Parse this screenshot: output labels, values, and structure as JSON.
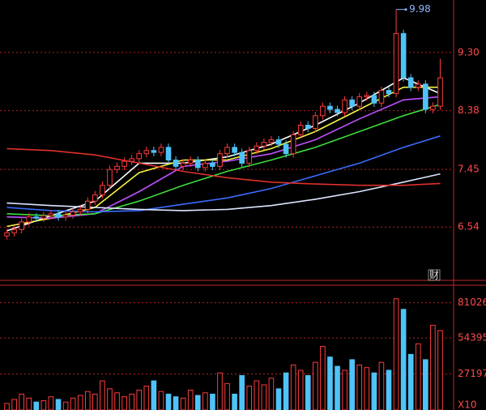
{
  "chart_data": [
    {
      "type": "candlestick",
      "open": [
        6.4,
        6.45,
        6.5,
        6.62,
        6.7,
        6.68,
        6.72,
        6.75,
        6.7,
        6.73,
        6.78,
        6.82,
        6.95,
        7.05,
        7.2,
        7.45,
        7.5,
        7.58,
        7.62,
        7.7,
        7.75,
        7.72,
        7.8,
        7.6,
        7.5,
        7.55,
        7.6,
        7.48,
        7.55,
        7.5,
        7.7,
        7.8,
        7.72,
        7.55,
        7.75,
        7.82,
        7.88,
        7.92,
        7.85,
        7.7,
        8.0,
        8.15,
        8.1,
        8.3,
        8.45,
        8.4,
        8.35,
        8.55,
        8.45,
        8.6,
        8.62,
        8.5,
        8.7,
        8.65,
        9.6,
        8.9,
        8.75,
        8.8,
        8.4,
        8.45
      ],
      "high": [
        6.51,
        6.56,
        6.68,
        6.76,
        6.76,
        6.78,
        6.81,
        6.81,
        6.79,
        6.84,
        6.88,
        7.01,
        7.11,
        7.26,
        7.51,
        7.56,
        7.64,
        7.68,
        7.76,
        7.81,
        7.81,
        7.86,
        7.86,
        7.66,
        7.61,
        7.66,
        7.66,
        7.61,
        7.61,
        7.76,
        7.86,
        7.86,
        7.78,
        7.81,
        7.88,
        7.94,
        7.98,
        7.98,
        7.91,
        8.06,
        8.21,
        8.21,
        8.36,
        8.51,
        8.51,
        8.46,
        8.61,
        8.61,
        8.66,
        8.68,
        8.68,
        8.76,
        8.76,
        9.98,
        9.66,
        8.96,
        8.86,
        8.86,
        8.51,
        9.2
      ],
      "low": [
        6.34,
        6.39,
        6.44,
        6.56,
        6.62,
        6.62,
        6.66,
        6.64,
        6.64,
        6.67,
        6.72,
        6.76,
        6.89,
        6.99,
        7.14,
        7.39,
        7.44,
        7.52,
        7.56,
        7.64,
        7.66,
        7.66,
        7.54,
        7.44,
        7.44,
        7.49,
        7.42,
        7.42,
        7.44,
        7.44,
        7.64,
        7.66,
        7.49,
        7.49,
        7.69,
        7.76,
        7.82,
        7.79,
        7.64,
        7.64,
        7.94,
        8.04,
        8.04,
        8.24,
        8.34,
        8.29,
        8.29,
        8.39,
        8.39,
        8.54,
        8.44,
        8.44,
        8.59,
        8.59,
        8.84,
        8.69,
        8.69,
        8.34,
        8.34,
        8.39
      ],
      "close": [
        6.45,
        6.5,
        6.62,
        6.7,
        6.68,
        6.72,
        6.75,
        6.7,
        6.73,
        6.78,
        6.82,
        6.95,
        7.05,
        7.2,
        7.45,
        7.5,
        7.58,
        7.62,
        7.7,
        7.75,
        7.72,
        7.8,
        7.6,
        7.5,
        7.55,
        7.6,
        7.48,
        7.55,
        7.5,
        7.7,
        7.8,
        7.72,
        7.55,
        7.75,
        7.82,
        7.88,
        7.92,
        7.85,
        7.7,
        8.0,
        8.15,
        8.1,
        8.3,
        8.45,
        8.4,
        8.35,
        8.55,
        8.45,
        8.6,
        8.62,
        8.5,
        8.7,
        8.65,
        9.6,
        8.9,
        8.75,
        8.8,
        8.4,
        8.45,
        8.9
      ],
      "up_color": "#ff3b3b",
      "down_color": "#4fc3f7",
      "lines": [
        {
          "color": "#ffffff",
          "x": [
            0,
            6,
            12,
            18,
            24,
            30,
            36,
            42,
            48,
            54,
            59
          ],
          "values": [
            6.48,
            6.72,
            6.95,
            7.55,
            7.55,
            7.65,
            7.85,
            8.15,
            8.5,
            8.9,
            8.65
          ]
        },
        {
          "color": "#f5f542",
          "x": [
            0,
            6,
            12,
            18,
            24,
            30,
            36,
            42,
            48,
            54,
            59
          ],
          "values": [
            6.55,
            6.68,
            6.85,
            7.4,
            7.6,
            7.6,
            7.78,
            8.05,
            8.4,
            8.75,
            8.75
          ]
        },
        {
          "color": "#c050ff",
          "x": [
            0,
            6,
            12,
            18,
            24,
            30,
            36,
            42,
            48,
            54,
            59
          ],
          "values": [
            6.7,
            6.68,
            6.75,
            7.1,
            7.5,
            7.58,
            7.7,
            7.92,
            8.25,
            8.55,
            8.6
          ]
        },
        {
          "color": "#3ddc3d",
          "x": [
            0,
            6,
            12,
            18,
            24,
            30,
            36,
            42,
            48,
            54,
            59
          ],
          "values": [
            6.75,
            6.72,
            6.75,
            6.95,
            7.2,
            7.42,
            7.6,
            7.8,
            8.05,
            8.3,
            8.48
          ]
        },
        {
          "color": "#3a6cff",
          "x": [
            0,
            6,
            12,
            18,
            24,
            30,
            36,
            42,
            48,
            54,
            59
          ],
          "values": [
            6.85,
            6.8,
            6.78,
            6.8,
            6.9,
            7.0,
            7.15,
            7.35,
            7.55,
            7.8,
            7.98
          ]
        },
        {
          "color": "#dde6ff",
          "x": [
            0,
            6,
            12,
            18,
            24,
            30,
            36,
            42,
            48,
            54,
            59
          ],
          "values": [
            6.92,
            6.88,
            6.85,
            6.82,
            6.8,
            6.82,
            6.88,
            6.98,
            7.1,
            7.25,
            7.38
          ]
        },
        {
          "color": "#e0302a",
          "x": [
            0,
            6,
            12,
            18,
            24,
            30,
            36,
            42,
            48,
            54,
            59
          ],
          "values": [
            7.78,
            7.75,
            7.68,
            7.55,
            7.42,
            7.32,
            7.25,
            7.22,
            7.2,
            7.2,
            7.23
          ]
        }
      ],
      "ylim": [
        5.71,
        10.13
      ],
      "yticks": [
        6.54,
        7.45,
        8.38,
        {
          "value": 9.3,
          "label": "9.30"
        }
      ],
      "grid": true,
      "marker_text": "财"
    },
    {
      "type": "volume",
      "values": [
        5000,
        8000,
        12000,
        9000,
        6000,
        7000,
        10000,
        8000,
        6000,
        9000,
        11000,
        14000,
        12000,
        22000,
        16000,
        13000,
        10000,
        12000,
        15000,
        18000,
        22000,
        14000,
        12000,
        10000,
        9000,
        15000,
        11000,
        13000,
        12000,
        28000,
        20000,
        12000,
        26000,
        18000,
        22000,
        19000,
        24000,
        16000,
        28000,
        34000,
        30000,
        26000,
        36000,
        48000,
        40000,
        33000,
        30000,
        38000,
        34000,
        32000,
        28000,
        36000,
        30000,
        84000,
        76000,
        42000,
        50000,
        38000,
        64000,
        60000
      ],
      "ylim": [
        0,
        93000
      ],
      "yticks": [
        27197,
        54395,
        81026
      ],
      "grid": true,
      "unit_label": "X10"
    }
  ]
}
